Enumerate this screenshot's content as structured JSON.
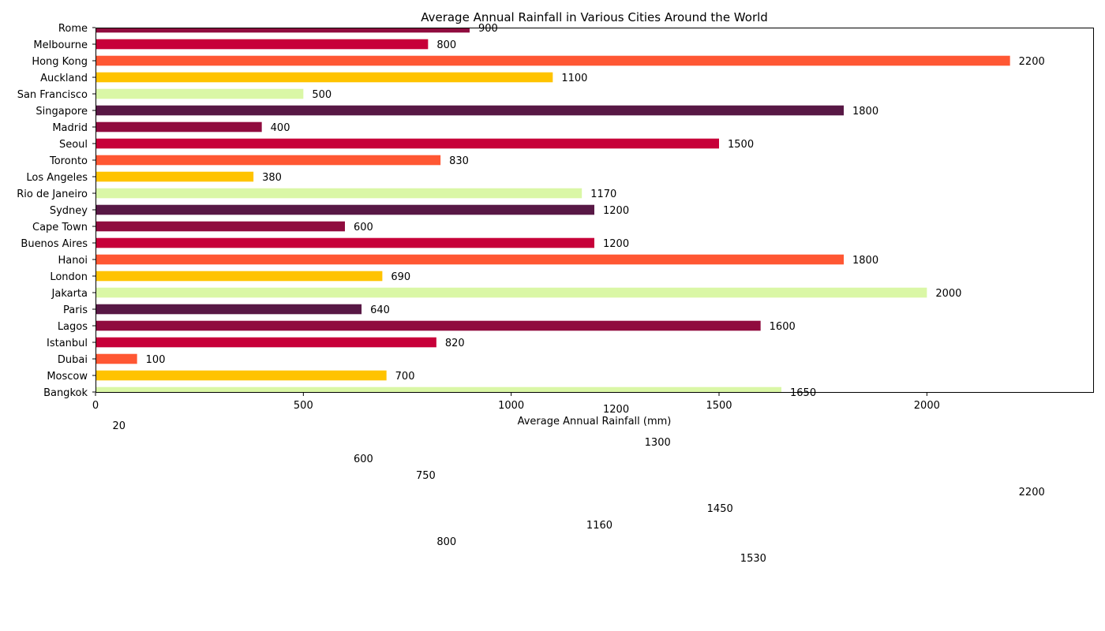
{
  "chart_data": {
    "type": "bar",
    "orientation": "horizontal",
    "title": "Average Annual Rainfall in Various Cities Around the World",
    "xlabel": "Average Annual Rainfall (mm)",
    "ylabel": "",
    "xlim": [
      0,
      2400
    ],
    "xticks": [
      0,
      500,
      1000,
      1500,
      2000
    ],
    "grid": false,
    "legend": "none",
    "categories": [
      "Bangkok",
      "Moscow",
      "Dubai",
      "Istanbul",
      "Lagos",
      "Paris",
      "Jakarta",
      "London",
      "Hanoi",
      "Buenos Aires",
      "Cape Town",
      "Sydney",
      "Rio de Janeiro",
      "Los Angeles",
      "Toronto",
      "Seoul",
      "Madrid",
      "Singapore",
      "San Francisco",
      "Auckland",
      "Hong Kong",
      "Melbourne",
      "Rome"
    ],
    "values": [
      1650,
      700,
      100,
      820,
      1600,
      640,
      2000,
      690,
      1800,
      1200,
      600,
      1200,
      1170,
      380,
      830,
      1500,
      400,
      1800,
      500,
      1100,
      2200,
      800,
      900
    ],
    "colors": [
      "#DAF7A6",
      "#FFC300",
      "#FF5733",
      "#C70039",
      "#900C3F",
      "#581845",
      "#DAF7A6",
      "#FFC300",
      "#FF5733",
      "#C70039",
      "#900C3F",
      "#581845",
      "#DAF7A6",
      "#FFC300",
      "#FF5733",
      "#C70039",
      "#900C3F",
      "#581845",
      "#DAF7A6",
      "#FFC300",
      "#FF5733",
      "#C70039",
      "#900C3F"
    ],
    "stray_labels": [
      {
        "row": -1,
        "value": 1200
      },
      {
        "row": -2,
        "value": 20
      },
      {
        "row": -3,
        "value": 1300
      },
      {
        "row": -4,
        "value": 600
      },
      {
        "row": -5,
        "value": 750
      },
      {
        "row": -6,
        "value": 2200
      },
      {
        "row": -7,
        "value": 1450
      },
      {
        "row": -8,
        "value": 1160
      },
      {
        "row": -9,
        "value": 800
      },
      {
        "row": -10,
        "value": 1530
      }
    ]
  }
}
